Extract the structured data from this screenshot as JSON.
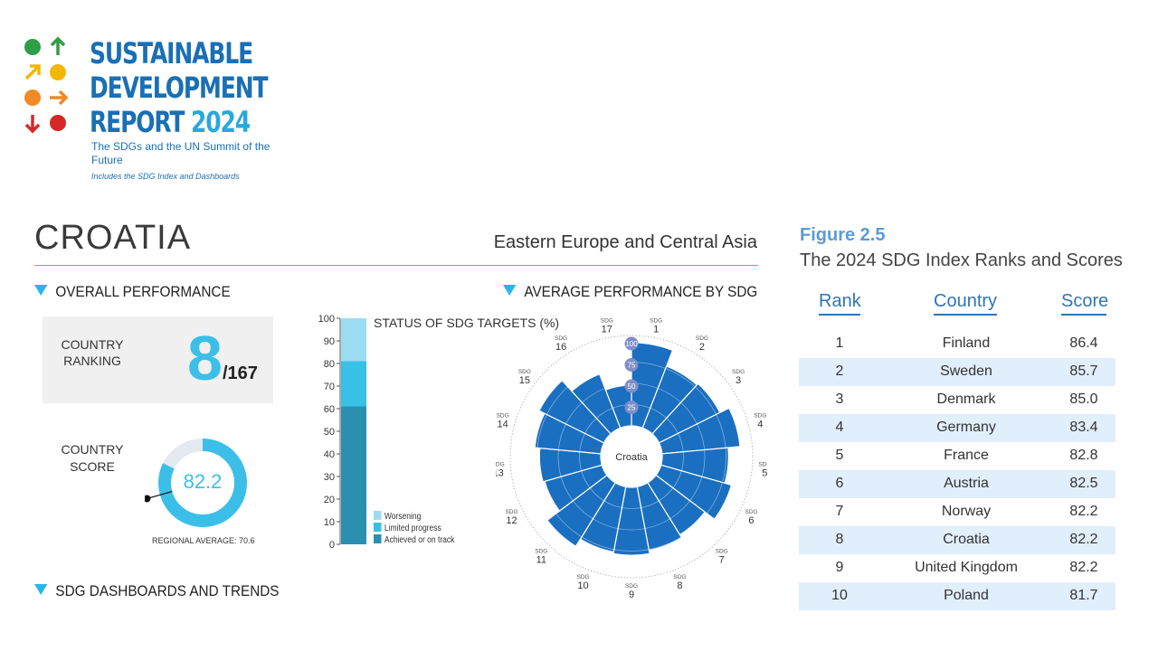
{
  "logo": {
    "title_lines": [
      "SUSTAINABLE",
      "DEVELOPMENT",
      "REPORT"
    ],
    "year": "2024",
    "subtitle": "The SDGs and the UN Summit of the Future",
    "note": "Includes the SDG Index and Dashboards",
    "colors": {
      "green": "#2f9e44",
      "yellow": "#f2b705",
      "orange": "#f08a24",
      "red": "#d62828"
    }
  },
  "country": {
    "name": "CROATIA",
    "region": "Eastern Europe and Central Asia"
  },
  "sections": {
    "overall": "OVERALL PERFORMANCE",
    "average": "AVERAGE PERFORMANCE BY SDG",
    "dashboards": "SDG DASHBOARDS AND TRENDS"
  },
  "ranking": {
    "label": "COUNTRY RANKING",
    "value": "8",
    "total": "/167"
  },
  "score": {
    "label": "COUNTRY SCORE",
    "value": "82.2",
    "numeric": 82.2,
    "regional_average_label": "REGIONAL AVERAGE: 70.6",
    "regional_average": 70.6,
    "accent": "#3bbfe8",
    "track": "#e4e8ef"
  },
  "targets": {
    "title": "STATUS OF SDG TARGETS (%)",
    "ticks": [
      0,
      10,
      20,
      30,
      40,
      50,
      60,
      70,
      80,
      90,
      100
    ],
    "segments": [
      {
        "name": "Achieved or on track",
        "value": 61,
        "color": "#2b8fb0"
      },
      {
        "name": "Limited progress",
        "value": 20,
        "color": "#38c0e6"
      },
      {
        "name": "Worsening",
        "value": 19,
        "color": "#9bdcf2"
      }
    ],
    "legend": [
      "Worsening",
      "Limited progress",
      "Achieved or on track"
    ]
  },
  "chart_data": {
    "type": "bar",
    "subtype": "radial",
    "center_label": "Croatia",
    "categories": [
      "1",
      "2",
      "3",
      "4",
      "5",
      "6",
      "7",
      "8",
      "9",
      "10",
      "11",
      "12",
      "13",
      "14",
      "15",
      "16",
      "17"
    ],
    "category_prefix": "SDG",
    "values": [
      98,
      78,
      80,
      92,
      78,
      86,
      72,
      76,
      80,
      78,
      88,
      70,
      72,
      78,
      85,
      68,
      48
    ],
    "rings": [
      25,
      50,
      75,
      100
    ],
    "ylim": [
      0,
      100
    ],
    "color": "#1a6fc0"
  },
  "figure": {
    "label": "Figure 2.5",
    "title": "The 2024 SDG Index Ranks and Scores",
    "headers": {
      "rank": "Rank",
      "country": "Country",
      "score": "Score"
    },
    "rows": [
      {
        "rank": "1",
        "country": "Finland",
        "score": "86.4"
      },
      {
        "rank": "2",
        "country": "Sweden",
        "score": "85.7"
      },
      {
        "rank": "3",
        "country": "Denmark",
        "score": "85.0"
      },
      {
        "rank": "4",
        "country": "Germany",
        "score": "83.4"
      },
      {
        "rank": "5",
        "country": "France",
        "score": "82.8"
      },
      {
        "rank": "6",
        "country": "Austria",
        "score": "82.5"
      },
      {
        "rank": "7",
        "country": "Norway",
        "score": "82.2"
      },
      {
        "rank": "8",
        "country": "Croatia",
        "score": "82.2"
      },
      {
        "rank": "9",
        "country": "United Kingdom",
        "score": "82.2"
      },
      {
        "rank": "10",
        "country": "Poland",
        "score": "81.7"
      }
    ]
  }
}
